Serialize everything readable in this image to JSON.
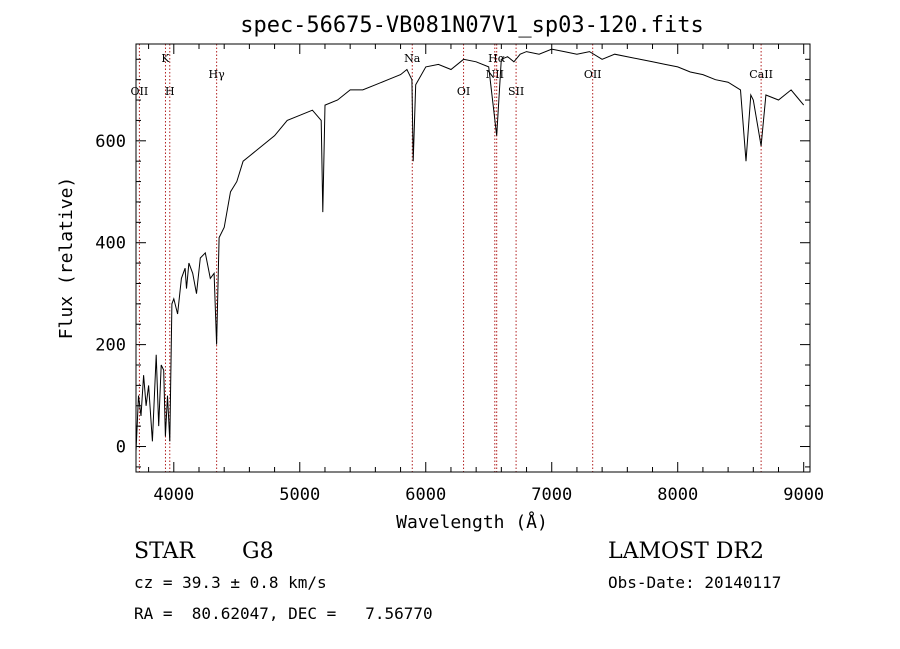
{
  "chart_data": {
    "type": "line",
    "title": "spec-56675-VB081N07V1_sp03-120.fits",
    "xlabel": "Wavelength (Å)",
    "ylabel": "Flux (relative)",
    "xlim": [
      3700,
      9050
    ],
    "ylim": [
      -50,
      790
    ],
    "xticks": [
      4000,
      5000,
      6000,
      7000,
      8000,
      9000
    ],
    "xtick_labels": [
      "4000",
      "5000",
      "6000",
      "7000",
      "8000",
      "9000"
    ],
    "yticks": [
      0,
      200,
      400,
      600
    ],
    "ytick_labels": [
      "0",
      "200",
      "400",
      "600"
    ],
    "series": [
      {
        "name": "flux",
        "x": [
          3700,
          3720,
          3740,
          3760,
          3780,
          3800,
          3830,
          3860,
          3880,
          3900,
          3920,
          3933,
          3950,
          3968,
          3985,
          4000,
          4030,
          4060,
          4090,
          4101,
          4120,
          4150,
          4180,
          4210,
          4250,
          4290,
          4320,
          4340,
          4360,
          4400,
          4450,
          4500,
          4550,
          4600,
          4700,
          4800,
          4900,
          5000,
          5100,
          5170,
          5183,
          5200,
          5300,
          5400,
          5500,
          5600,
          5700,
          5800,
          5850,
          5890,
          5900,
          5920,
          6000,
          6100,
          6200,
          6300,
          6400,
          6500,
          6563,
          6600,
          6650,
          6700,
          6750,
          6800,
          6900,
          7000,
          7100,
          7200,
          7300,
          7400,
          7500,
          7600,
          7700,
          7800,
          7900,
          8000,
          8100,
          8200,
          8300,
          8400,
          8498,
          8542,
          8580,
          8600,
          8662,
          8700,
          8800,
          8900,
          8950,
          9000
        ],
        "y": [
          -10,
          100,
          60,
          140,
          80,
          120,
          10,
          180,
          40,
          160,
          150,
          20,
          100,
          10,
          280,
          290,
          260,
          330,
          350,
          310,
          360,
          340,
          300,
          370,
          380,
          330,
          340,
          200,
          410,
          430,
          500,
          520,
          560,
          570,
          590,
          610,
          640,
          650,
          660,
          640,
          460,
          670,
          680,
          700,
          700,
          710,
          720,
          730,
          740,
          720,
          560,
          710,
          745,
          750,
          740,
          760,
          755,
          745,
          610,
          760,
          765,
          755,
          770,
          775,
          770,
          780,
          775,
          770,
          775,
          760,
          770,
          765,
          760,
          755,
          750,
          745,
          735,
          730,
          720,
          715,
          700,
          560,
          690,
          680,
          590,
          690,
          680,
          700,
          685,
          670
        ]
      }
    ],
    "lines": [
      {
        "label": "OII",
        "wavelength": 3727,
        "row": "lower"
      },
      {
        "label": "K",
        "wavelength": 3934,
        "row": "upper"
      },
      {
        "label": "H",
        "wavelength": 3968,
        "row": "lower"
      },
      {
        "label": "Hγ",
        "wavelength": 4340,
        "row": "middle"
      },
      {
        "label": "Na",
        "wavelength": 5893,
        "row": "upper"
      },
      {
        "label": "OI",
        "wavelength": 6300,
        "row": "lower"
      },
      {
        "label": "NII",
        "wavelength": 6548,
        "row": "middle"
      },
      {
        "label": "Hα",
        "wavelength": 6563,
        "row": "upper"
      },
      {
        "label": "SII",
        "wavelength": 6717,
        "row": "lower"
      },
      {
        "label": "OII",
        "wavelength": 7325,
        "row": "middle"
      },
      {
        "label": "CaII",
        "wavelength": 8662,
        "row": "middle"
      }
    ]
  },
  "info": {
    "object_class": "STAR",
    "subclass": "G8",
    "survey": "LAMOST DR2",
    "redshift": "cz = 39.3 ± 0.8 km/s",
    "obs_date": "Obs-Date: 20140117",
    "coords": "RA =  80.62047, DEC =   7.56770"
  },
  "colors": {
    "line_marker": "#b22222",
    "spectrum": "#000000"
  }
}
